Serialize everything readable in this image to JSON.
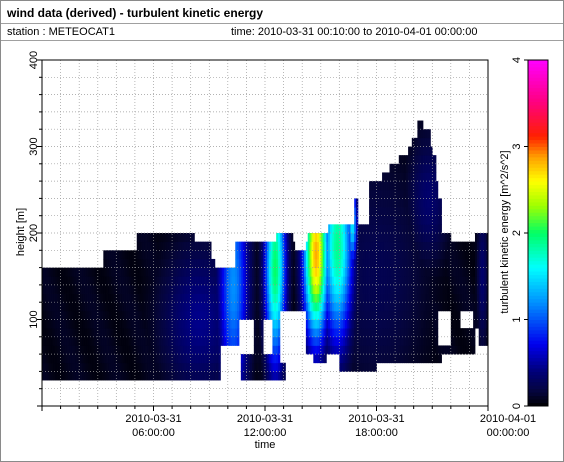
{
  "header": {
    "title": "wind data (derived) - turbulent kinetic energy",
    "station": "station : METEOCAT1",
    "time_range": "time: 2010-03-31 00:10:00 to 2010-04-01 00:00:00"
  },
  "colors": {
    "frame": "#8a8a8a",
    "grid": "#9a9a9a",
    "no_data": "#ffffff"
  },
  "chart_data": {
    "type": "heatmap",
    "title": "wind data (derived) - turbulent kinetic energy",
    "xlabel": "time",
    "ylabel": "height [m]",
    "x_unit": "hours since 2010-03-31 00:00:00",
    "xlim": [
      0,
      24
    ],
    "ylim": [
      0,
      400
    ],
    "x_ticks": [
      {
        "value": 6,
        "line1": "2010-03-31",
        "line2": "06:00:00"
      },
      {
        "value": 12,
        "line1": "2010-03-31",
        "line2": "12:00:00"
      },
      {
        "value": 18,
        "line1": "2010-03-31",
        "line2": "18:00:00"
      },
      {
        "value": 24,
        "line1": "2010-04-01",
        "line2": "00:00:00"
      }
    ],
    "y_ticks": [
      100,
      200,
      300,
      400
    ],
    "grid": true,
    "colorbar": {
      "label": "turbulent kinetic energy [m^2/s^2]",
      "range": [
        0,
        4
      ],
      "ticks": [
        0,
        1,
        2,
        3,
        4
      ],
      "stops": [
        [
          0.0,
          "#000000"
        ],
        [
          0.04,
          "#05053a"
        ],
        [
          0.1,
          "#000078"
        ],
        [
          0.18,
          "#0000ee"
        ],
        [
          0.3,
          "#0090ff"
        ],
        [
          0.4,
          "#00ffff"
        ],
        [
          0.5,
          "#00ff66"
        ],
        [
          0.58,
          "#a0ff00"
        ],
        [
          0.65,
          "#ffff00"
        ],
        [
          0.72,
          "#ffa000"
        ],
        [
          0.78,
          "#ff2000"
        ],
        [
          0.88,
          "#ff0080"
        ],
        [
          1.0,
          "#ff00ff"
        ]
      ]
    },
    "series": [
      {
        "bottom": [
          [
            0,
            35
          ],
          [
            13.1,
            35
          ],
          [
            13.1,
            64
          ],
          [
            14.5,
            64
          ],
          [
            14.6,
            52
          ],
          [
            15.3,
            52
          ],
          [
            15.4,
            64
          ],
          [
            16,
            64
          ],
          [
            16,
            38
          ],
          [
            18,
            38
          ],
          [
            18,
            48
          ],
          [
            21.5,
            48
          ],
          [
            21.5,
            58
          ],
          [
            23.3,
            58
          ],
          [
            23.3,
            95
          ],
          [
            23.5,
            95
          ],
          [
            23.5,
            72
          ],
          [
            24,
            72
          ],
          [
            24,
            38
          ]
        ],
        "top": [
          [
            0,
            162
          ],
          [
            3.3,
            162
          ],
          [
            3.3,
            175
          ],
          [
            5.1,
            175
          ],
          [
            5.1,
            198
          ],
          [
            6.6,
            198
          ],
          [
            6.6,
            204
          ],
          [
            8.2,
            204
          ],
          [
            8.2,
            187
          ],
          [
            9.1,
            187
          ],
          [
            9.1,
            172
          ],
          [
            9.3,
            172
          ],
          [
            9.3,
            162
          ],
          [
            10.4,
            162
          ],
          [
            10.4,
            186
          ],
          [
            10.7,
            186
          ],
          [
            10.7,
            193
          ],
          [
            11.5,
            193
          ],
          [
            11.6,
            186
          ],
          [
            12.6,
            186
          ],
          [
            12.6,
            195
          ],
          [
            13.5,
            195
          ],
          [
            13.6,
            182
          ],
          [
            14.2,
            182
          ],
          [
            14.3,
            195
          ],
          [
            15.4,
            195
          ],
          [
            15.4,
            205
          ],
          [
            16.3,
            205
          ],
          [
            16.3,
            212
          ],
          [
            16.8,
            212
          ],
          [
            16.8,
            235
          ],
          [
            17.0,
            235
          ],
          [
            17.0,
            206
          ],
          [
            17.6,
            206
          ],
          [
            17.6,
            258
          ],
          [
            18.2,
            258
          ],
          [
            18.3,
            265
          ],
          [
            18.7,
            265
          ],
          [
            18.7,
            275
          ],
          [
            19.2,
            275
          ],
          [
            19.2,
            290
          ],
          [
            19.6,
            290
          ],
          [
            19.7,
            296
          ],
          [
            19.9,
            296
          ],
          [
            19.9,
            310
          ],
          [
            20.2,
            310
          ],
          [
            20.2,
            325
          ],
          [
            20.5,
            325
          ],
          [
            20.5,
            317
          ],
          [
            20.9,
            317
          ],
          [
            21.0,
            286
          ],
          [
            21.2,
            286
          ],
          [
            21.3,
            242
          ],
          [
            21.5,
            242
          ],
          [
            21.5,
            196
          ],
          [
            22.0,
            196
          ],
          [
            22.1,
            186
          ],
          [
            22.6,
            186
          ],
          [
            22.6,
            186
          ],
          [
            23.2,
            186
          ],
          [
            23.3,
            195
          ],
          [
            24,
            195
          ]
        ],
        "holes": [
          {
            "x": [
              9.6,
              10.7
            ],
            "y": [
              0,
              70
            ]
          },
          {
            "x": [
              10.6,
              11.4
            ],
            "y": [
              60,
              102
            ]
          },
          {
            "x": [
              11.9,
              12.4
            ],
            "y": [
              60,
              98
            ]
          },
          {
            "x": [
              12.8,
              14.2
            ],
            "y": [
              54,
              110
            ]
          },
          {
            "x": [
              21.3,
              22.0
            ],
            "y": [
              68,
              112
            ]
          },
          {
            "x": [
              22.5,
              23.2
            ],
            "y": [
              86,
              114
            ]
          }
        ],
        "hotspots": [
          {
            "t": 12.55,
            "h": 160,
            "dt": 0.55,
            "dh": 110,
            "peak": 2.0
          },
          {
            "t": 14.75,
            "h": 175,
            "dt": 0.65,
            "dh": 95,
            "peak": 2.85
          },
          {
            "t": 15.9,
            "h": 185,
            "dt": 0.8,
            "dh": 110,
            "peak": 1.9
          },
          {
            "t": 10.3,
            "h": 140,
            "dt": 0.8,
            "dh": 140,
            "peak": 1.2
          },
          {
            "t": 16.7,
            "h": 210,
            "dt": 0.25,
            "dh": 45,
            "peak": 1.55
          },
          {
            "t": 8.5,
            "h": 100,
            "dt": 2.2,
            "dh": 90,
            "peak": 0.45
          },
          {
            "t": 18.0,
            "h": 150,
            "dt": 3.0,
            "dh": 150,
            "peak": 0.25
          },
          {
            "t": 20.8,
            "h": 240,
            "dt": 1.2,
            "dh": 80,
            "peak": 0.35
          },
          {
            "t": 23.7,
            "h": 150,
            "dt": 0.3,
            "dh": 90,
            "peak": 0.35
          }
        ],
        "background_level": 0.07
      }
    ]
  }
}
